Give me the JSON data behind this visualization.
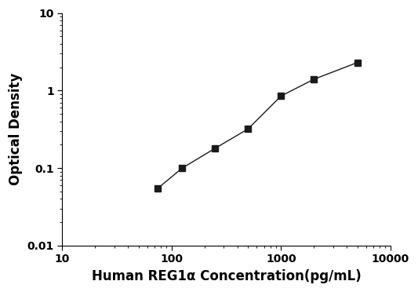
{
  "x_data": [
    75,
    125,
    250,
    500,
    1000,
    2000,
    5000
  ],
  "y_data": [
    0.055,
    0.1,
    0.18,
    0.32,
    0.85,
    1.4,
    2.3
  ],
  "x_label": "Human REG1α Concentration(pg/mL)",
  "y_label": "Optical Density",
  "x_lim": [
    10,
    10000
  ],
  "y_lim": [
    0.01,
    10
  ],
  "x_ticks": [
    10,
    100,
    1000,
    10000
  ],
  "x_tick_labels": [
    "10",
    "100",
    "1000",
    "10000"
  ],
  "y_ticks": [
    0.01,
    0.1,
    1,
    10
  ],
  "y_tick_labels": [
    "0.01",
    "0.1",
    "1",
    "10"
  ],
  "marker": "s",
  "marker_color": "#1a1a1a",
  "line_color": "#555555",
  "marker_size": 6,
  "line_width": 1.0,
  "background_color": "#ffffff",
  "label_fontsize": 12,
  "tick_fontsize": 10
}
